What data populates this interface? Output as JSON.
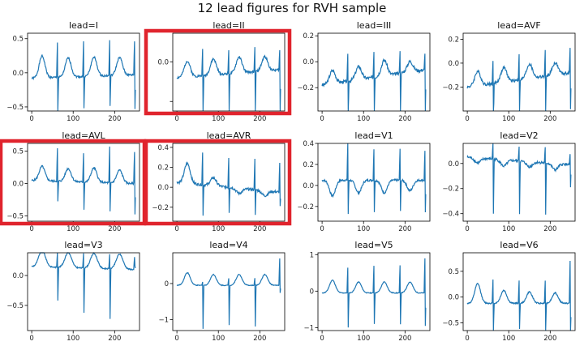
{
  "figure": {
    "title": "12 lead figures for RVH sample"
  },
  "colors": {
    "line": "#1f77b4",
    "highlight": "#e0242d",
    "axis": "#000000"
  },
  "chart_data": [
    {
      "type": "line",
      "title": "lead=I",
      "xlim": [
        -10,
        260
      ],
      "ylim": [
        -0.56,
        0.58
      ],
      "xticks": [
        0,
        100,
        200
      ],
      "yticks": [
        -0.5,
        0,
        0.5
      ],
      "ytick_labels": [
        "−0.5",
        "0.0",
        "0.5"
      ],
      "highlighted": false,
      "base": -0.08,
      "beats": [
        [
          62,
          0.52,
          -0.5
        ],
        [
          125,
          0.52,
          -0.48
        ],
        [
          188,
          0.52,
          -0.45
        ],
        [
          248,
          0.5,
          -0.5
        ]
      ],
      "twaves": [
        [
          25,
          0.32,
          7
        ],
        [
          88,
          0.28,
          7
        ],
        [
          150,
          0.28,
          7
        ],
        [
          212,
          0.26,
          7
        ]
      ],
      "drift": 0.05,
      "noise": 0.03,
      "seed": 1
    },
    {
      "type": "line",
      "title": "lead=II",
      "xlim": [
        -10,
        260
      ],
      "ylim": [
        -0.62,
        0.36
      ],
      "xticks": [
        0,
        100,
        200
      ],
      "yticks": [
        -0.5,
        0,
        0.5
      ],
      "ytick_labels": [
        "",
        "0.0",
        ""
      ],
      "highlighted": true,
      "base": -0.2,
      "beats": [
        [
          62,
          0.35,
          -0.58
        ],
        [
          125,
          0.3,
          -0.5
        ],
        [
          188,
          0.3,
          -0.52
        ],
        [
          248,
          0.25,
          -0.55
        ]
      ],
      "twaves": [
        [
          25,
          0.2,
          7
        ],
        [
          88,
          0.2,
          7
        ],
        [
          150,
          0.2,
          7
        ],
        [
          212,
          0.18,
          7
        ]
      ],
      "drift": 0.1,
      "noise": 0.03,
      "seed": 2
    },
    {
      "type": "line",
      "title": "lead=III",
      "xlim": [
        -10,
        260
      ],
      "ylim": [
        -0.38,
        0.22
      ],
      "xticks": [
        0,
        100,
        200
      ],
      "yticks": [
        -0.2,
        0,
        0.2
      ],
      "ytick_labels": [
        "−0.2",
        "0.0",
        "0.2"
      ],
      "highlighted": false,
      "base": -0.18,
      "beats": [
        [
          62,
          0.2,
          -0.3
        ],
        [
          125,
          0.2,
          -0.28
        ],
        [
          188,
          0.18,
          -0.3
        ],
        [
          248,
          0.12,
          -0.35
        ]
      ],
      "twaves": [
        [
          25,
          0.1,
          7
        ],
        [
          88,
          0.1,
          7
        ],
        [
          150,
          0.12,
          7
        ],
        [
          212,
          0.08,
          7
        ]
      ],
      "drift": 0.12,
      "noise": 0.025,
      "seed": 3
    },
    {
      "type": "line",
      "title": "lead=AVF",
      "xlim": [
        -10,
        260
      ],
      "ylim": [
        -0.4,
        0.25
      ],
      "xticks": [
        0,
        100,
        200
      ],
      "yticks": [
        -0.2,
        0,
        0.2
      ],
      "ytick_labels": [
        "−0.2",
        "0.0",
        "0.2"
      ],
      "highlighted": false,
      "base": -0.2,
      "beats": [
        [
          62,
          0.18,
          -0.35
        ],
        [
          125,
          0.22,
          -0.28
        ],
        [
          188,
          0.22,
          -0.3
        ],
        [
          248,
          0.2,
          -0.3
        ]
      ],
      "twaves": [
        [
          25,
          0.12,
          7
        ],
        [
          88,
          0.12,
          7
        ],
        [
          150,
          0.12,
          7
        ],
        [
          212,
          0.1,
          7
        ]
      ],
      "drift": 0.12,
      "noise": 0.025,
      "seed": 4
    },
    {
      "type": "line",
      "title": "lead=AVL",
      "xlim": [
        -10,
        260
      ],
      "ylim": [
        -0.58,
        0.62
      ],
      "xticks": [
        0,
        100,
        200
      ],
      "yticks": [
        -0.5,
        0,
        0.5
      ],
      "ytick_labels": [
        "−0.5",
        "0.0",
        "0.5"
      ],
      "highlighted": true,
      "base": 0.05,
      "beats": [
        [
          62,
          0.5,
          -0.32
        ],
        [
          125,
          0.45,
          -0.42
        ],
        [
          188,
          0.55,
          -0.45
        ],
        [
          248,
          0.5,
          -0.48
        ]
      ],
      "twaves": [
        [
          25,
          0.22,
          7
        ],
        [
          88,
          0.2,
          7
        ],
        [
          150,
          0.22,
          7
        ],
        [
          212,
          0.2,
          7
        ]
      ],
      "drift": -0.05,
      "noise": 0.03,
      "seed": 5
    },
    {
      "type": "line",
      "title": "lead=AVR",
      "xlim": [
        -10,
        260
      ],
      "ylim": [
        -0.34,
        0.44
      ],
      "xticks": [
        0,
        100,
        200
      ],
      "yticks": [
        -0.2,
        0,
        0.2,
        0.4
      ],
      "ytick_labels": [
        "−0.2",
        "0.0",
        "0.2",
        "0.4"
      ],
      "highlighted": true,
      "base": 0.05,
      "beats": [
        [
          62,
          0.32,
          -0.3
        ],
        [
          125,
          0.3,
          -0.25
        ],
        [
          188,
          0.32,
          -0.26
        ],
        [
          248,
          0.3,
          -0.15
        ]
      ],
      "twaves": [
        [
          25,
          0.2,
          7
        ],
        [
          88,
          0.08,
          7
        ],
        [
          150,
          -0.05,
          7
        ],
        [
          212,
          -0.05,
          7
        ]
      ],
      "drift": -0.1,
      "noise": 0.025,
      "seed": 6
    },
    {
      "type": "line",
      "title": "lead=V1",
      "xlim": [
        -10,
        260
      ],
      "ylim": [
        -0.34,
        0.4
      ],
      "xticks": [
        0,
        100,
        200
      ],
      "yticks": [
        -0.2,
        0,
        0.2,
        0.4
      ],
      "ytick_labels": [
        "−0.2",
        "0.0",
        "0.2",
        "0.4"
      ],
      "highlighted": false,
      "base": 0.05,
      "beats": [
        [
          62,
          0.36,
          -0.32
        ],
        [
          125,
          0.3,
          -0.3
        ],
        [
          188,
          0.3,
          -0.3
        ],
        [
          248,
          0.28,
          -0.3
        ]
      ],
      "twaves": [
        [
          25,
          -0.15,
          7
        ],
        [
          88,
          -0.12,
          7
        ],
        [
          150,
          -0.12,
          7
        ],
        [
          212,
          -0.1,
          7
        ]
      ],
      "drift": 0,
      "noise": 0.02,
      "seed": 7
    },
    {
      "type": "line",
      "title": "lead=V2",
      "xlim": [
        -10,
        260
      ],
      "ylim": [
        -0.46,
        0.16
      ],
      "xticks": [
        0,
        100,
        200
      ],
      "yticks": [
        -0.4,
        -0.2,
        0
      ],
      "ytick_labels": [
        "−0.4",
        "−0.2",
        "0.0"
      ],
      "highlighted": false,
      "base": 0.05,
      "beats": [
        [
          62,
          0.14,
          -0.44
        ],
        [
          125,
          0.12,
          -0.42
        ],
        [
          188,
          0.12,
          -0.42
        ],
        [
          248,
          0.08,
          -0.18
        ]
      ],
      "twaves": [
        [
          25,
          -0.04,
          7
        ],
        [
          88,
          -0.05,
          7
        ],
        [
          150,
          -0.04,
          7
        ],
        [
          212,
          -0.05,
          7
        ]
      ],
      "drift": -0.06,
      "noise": 0.02,
      "seed": 8
    },
    {
      "type": "line",
      "title": "lead=V3",
      "xlim": [
        -10,
        260
      ],
      "ylim": [
        -0.92,
        0.38
      ],
      "xticks": [
        0,
        100,
        200
      ],
      "yticks": [
        -0.5,
        0
      ],
      "ytick_labels": [
        "−0.5",
        "0.0"
      ],
      "highlighted": false,
      "base": 0.15,
      "beats": [
        [
          62,
          0.25,
          -0.55
        ],
        [
          125,
          0.25,
          -0.75
        ],
        [
          188,
          0.25,
          -0.85
        ],
        [
          248,
          0.2,
          0.05
        ]
      ],
      "twaves": [
        [
          25,
          0.28,
          8
        ],
        [
          88,
          0.25,
          8
        ],
        [
          150,
          0.25,
          8
        ],
        [
          212,
          0.25,
          8
        ]
      ],
      "drift": -0.05,
      "noise": 0.02,
      "seed": 9
    },
    {
      "type": "line",
      "title": "lead=V4",
      "xlim": [
        -10,
        260
      ],
      "ylim": [
        -1.3,
        0.85
      ],
      "xticks": [
        0,
        100,
        200
      ],
      "yticks": [
        -1,
        0
      ],
      "ytick_labels": [
        "−1",
        "0"
      ],
      "highlighted": false,
      "base": -0.05,
      "beats": [
        [
          62,
          0.1,
          -1.2
        ],
        [
          125,
          0.2,
          -1.1
        ],
        [
          188,
          0.2,
          -1.15
        ],
        [
          248,
          0.75,
          -0.2
        ]
      ],
      "twaves": [
        [
          25,
          0.35,
          7
        ],
        [
          88,
          0.3,
          7
        ],
        [
          150,
          0.3,
          7
        ],
        [
          212,
          0.3,
          7
        ]
      ],
      "drift": 0,
      "noise": 0.02,
      "seed": 10
    },
    {
      "type": "line",
      "title": "lead=V5",
      "xlim": [
        -10,
        260
      ],
      "ylim": [
        -1.08,
        1.05
      ],
      "xticks": [
        0,
        100,
        200
      ],
      "yticks": [
        -1,
        0,
        1
      ],
      "ytick_labels": [
        "−1",
        "0",
        "1"
      ],
      "highlighted": false,
      "base": -0.05,
      "beats": [
        [
          62,
          0.7,
          -0.95
        ],
        [
          125,
          0.75,
          -0.85
        ],
        [
          188,
          0.75,
          -0.85
        ],
        [
          248,
          0.95,
          -0.9
        ]
      ],
      "twaves": [
        [
          25,
          0.35,
          7
        ],
        [
          88,
          0.3,
          7
        ],
        [
          150,
          0.3,
          7
        ],
        [
          212,
          0.3,
          7
        ]
      ],
      "drift": 0,
      "noise": 0.02,
      "seed": 11
    },
    {
      "type": "line",
      "title": "lead=V6",
      "xlim": [
        -10,
        260
      ],
      "ylim": [
        -0.65,
        0.86
      ],
      "xticks": [
        0,
        100,
        200
      ],
      "yticks": [
        -0.5,
        0,
        0.5
      ],
      "ytick_labels": [
        "−0.5",
        "0.0",
        "0.5"
      ],
      "highlighted": false,
      "base": -0.12,
      "beats": [
        [
          62,
          0.45,
          -0.55
        ],
        [
          125,
          0.45,
          -0.5
        ],
        [
          188,
          0.45,
          -0.55
        ],
        [
          248,
          0.82,
          -0.6
        ]
      ],
      "twaves": [
        [
          25,
          0.38,
          7
        ],
        [
          88,
          0.25,
          7
        ],
        [
          150,
          0.22,
          7
        ],
        [
          212,
          0.2,
          7
        ]
      ],
      "drift": 0,
      "noise": 0.025,
      "seed": 12
    }
  ]
}
